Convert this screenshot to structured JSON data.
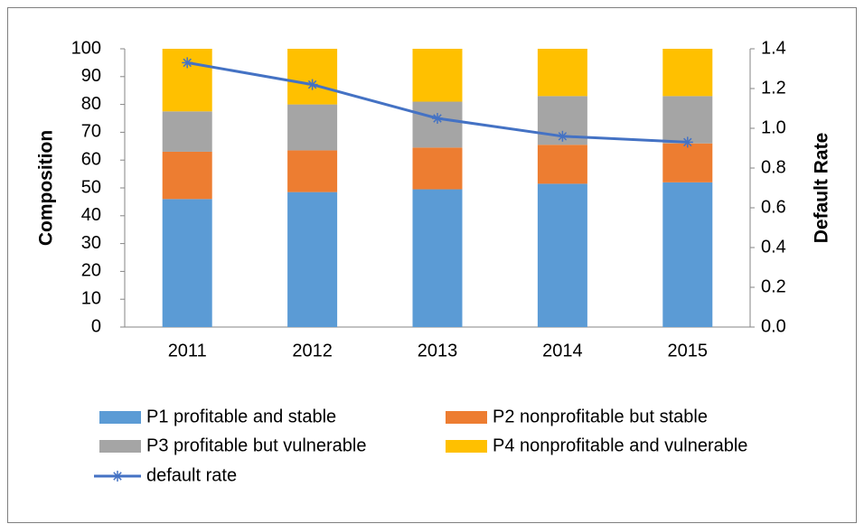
{
  "chart_data": {
    "type": "bar",
    "stacked": true,
    "categories": [
      "2011",
      "2012",
      "2013",
      "2014",
      "2015"
    ],
    "y_label": "Composition",
    "y2_label": "Default Rate",
    "ylim": [
      0,
      100
    ],
    "yticks": [
      0,
      10,
      20,
      30,
      40,
      50,
      60,
      70,
      80,
      90,
      100
    ],
    "y2lim": [
      0,
      1.4
    ],
    "y2ticks": [
      {
        "value": 0,
        "label": "0.0"
      },
      0.2,
      0.4,
      0.6,
      0.8,
      {
        "value": 1,
        "label": "1.0"
      },
      1.2,
      1.4
    ],
    "series": [
      {
        "name": "P1 profitable and stable",
        "color": "#5b9bd5",
        "values": [
          46,
          48.5,
          49.5,
          51.5,
          52
        ]
      },
      {
        "name": "P2 nonprofitable but stable",
        "color": "#ed7d31",
        "values": [
          17,
          15,
          15,
          14,
          14
        ]
      },
      {
        "name": "P3 profitable but vulnerable",
        "color": "#a5a5a5",
        "values": [
          14.5,
          16.5,
          16.5,
          17.5,
          17
        ]
      },
      {
        "name": "P4 nonprofitable and vulnerable",
        "color": "#ffc000",
        "values": [
          22.5,
          20,
          19,
          17,
          17
        ]
      },
      {
        "name": "default rate",
        "color": "#4472c4",
        "type": "line",
        "axis": "y2",
        "values": [
          1.33,
          1.22,
          1.05,
          0.96,
          0.93
        ]
      }
    ]
  }
}
